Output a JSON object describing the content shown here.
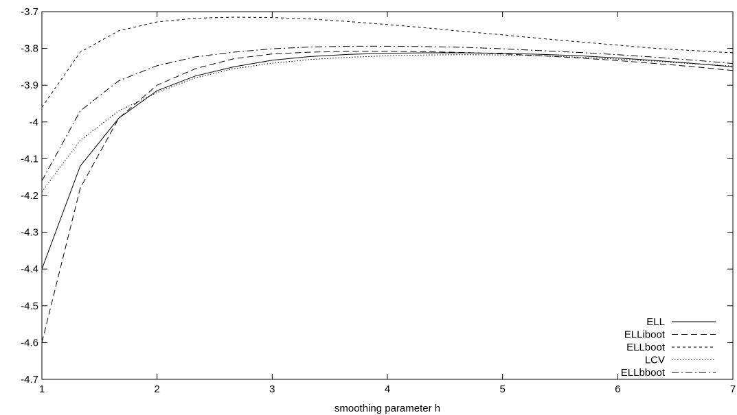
{
  "chart_data": {
    "type": "line",
    "title": "",
    "xlabel": "smoothing parameter h",
    "ylabel": "",
    "xlim": [
      1,
      7
    ],
    "ylim": [
      -4.7,
      -3.7
    ],
    "grid": false,
    "legend_position": "bottom-right",
    "x_ticks": [
      "1",
      "2",
      "3",
      "4",
      "5",
      "6",
      "7"
    ],
    "y_ticks": [
      "-3.7",
      "-3.8",
      "-3.9",
      "-4",
      "-4.1",
      "-4.2",
      "-4.3",
      "-4.4",
      "-4.5",
      "-4.6",
      "-4.7"
    ],
    "x": [
      1.0,
      1.333,
      1.667,
      2.0,
      2.333,
      2.667,
      3.0,
      3.333,
      3.667,
      4.0,
      4.333,
      4.667,
      5.0,
      5.333,
      5.667,
      6.0,
      6.333,
      6.667,
      7.0
    ],
    "series": [
      {
        "name": "ELL",
        "dash": "solid",
        "values": [
          -4.4,
          -4.12,
          -3.99,
          -3.915,
          -3.875,
          -3.85,
          -3.832,
          -3.822,
          -3.816,
          -3.813,
          -3.812,
          -3.812,
          -3.813,
          -3.816,
          -3.82,
          -3.826,
          -3.833,
          -3.841,
          -3.85
        ]
      },
      {
        "name": "ELLiboot",
        "dash": "long-dash",
        "values": [
          -4.6,
          -4.18,
          -3.99,
          -3.9,
          -3.855,
          -3.828,
          -3.815,
          -3.81,
          -3.808,
          -3.808,
          -3.809,
          -3.811,
          -3.815,
          -3.82,
          -3.826,
          -3.833,
          -3.841,
          -3.85,
          -3.86
        ]
      },
      {
        "name": "ELLboot",
        "dash": "short-dash",
        "values": [
          -3.96,
          -3.81,
          -3.752,
          -3.728,
          -3.718,
          -3.715,
          -3.716,
          -3.72,
          -3.727,
          -3.735,
          -3.744,
          -3.754,
          -3.763,
          -3.773,
          -3.782,
          -3.791,
          -3.8,
          -3.806,
          -3.812
        ]
      },
      {
        "name": "LCV",
        "dash": "dotted",
        "values": [
          -4.19,
          -4.05,
          -3.97,
          -3.92,
          -3.88,
          -3.855,
          -3.84,
          -3.83,
          -3.824,
          -3.82,
          -3.818,
          -3.817,
          -3.818,
          -3.82,
          -3.824,
          -3.829,
          -3.835,
          -3.842,
          -3.848
        ]
      },
      {
        "name": "ELLbboot",
        "dash": "dash-dot",
        "values": [
          -4.16,
          -3.97,
          -3.888,
          -3.847,
          -3.823,
          -3.81,
          -3.801,
          -3.796,
          -3.794,
          -3.794,
          -3.795,
          -3.797,
          -3.801,
          -3.806,
          -3.811,
          -3.817,
          -3.824,
          -3.832,
          -3.841
        ]
      }
    ]
  }
}
